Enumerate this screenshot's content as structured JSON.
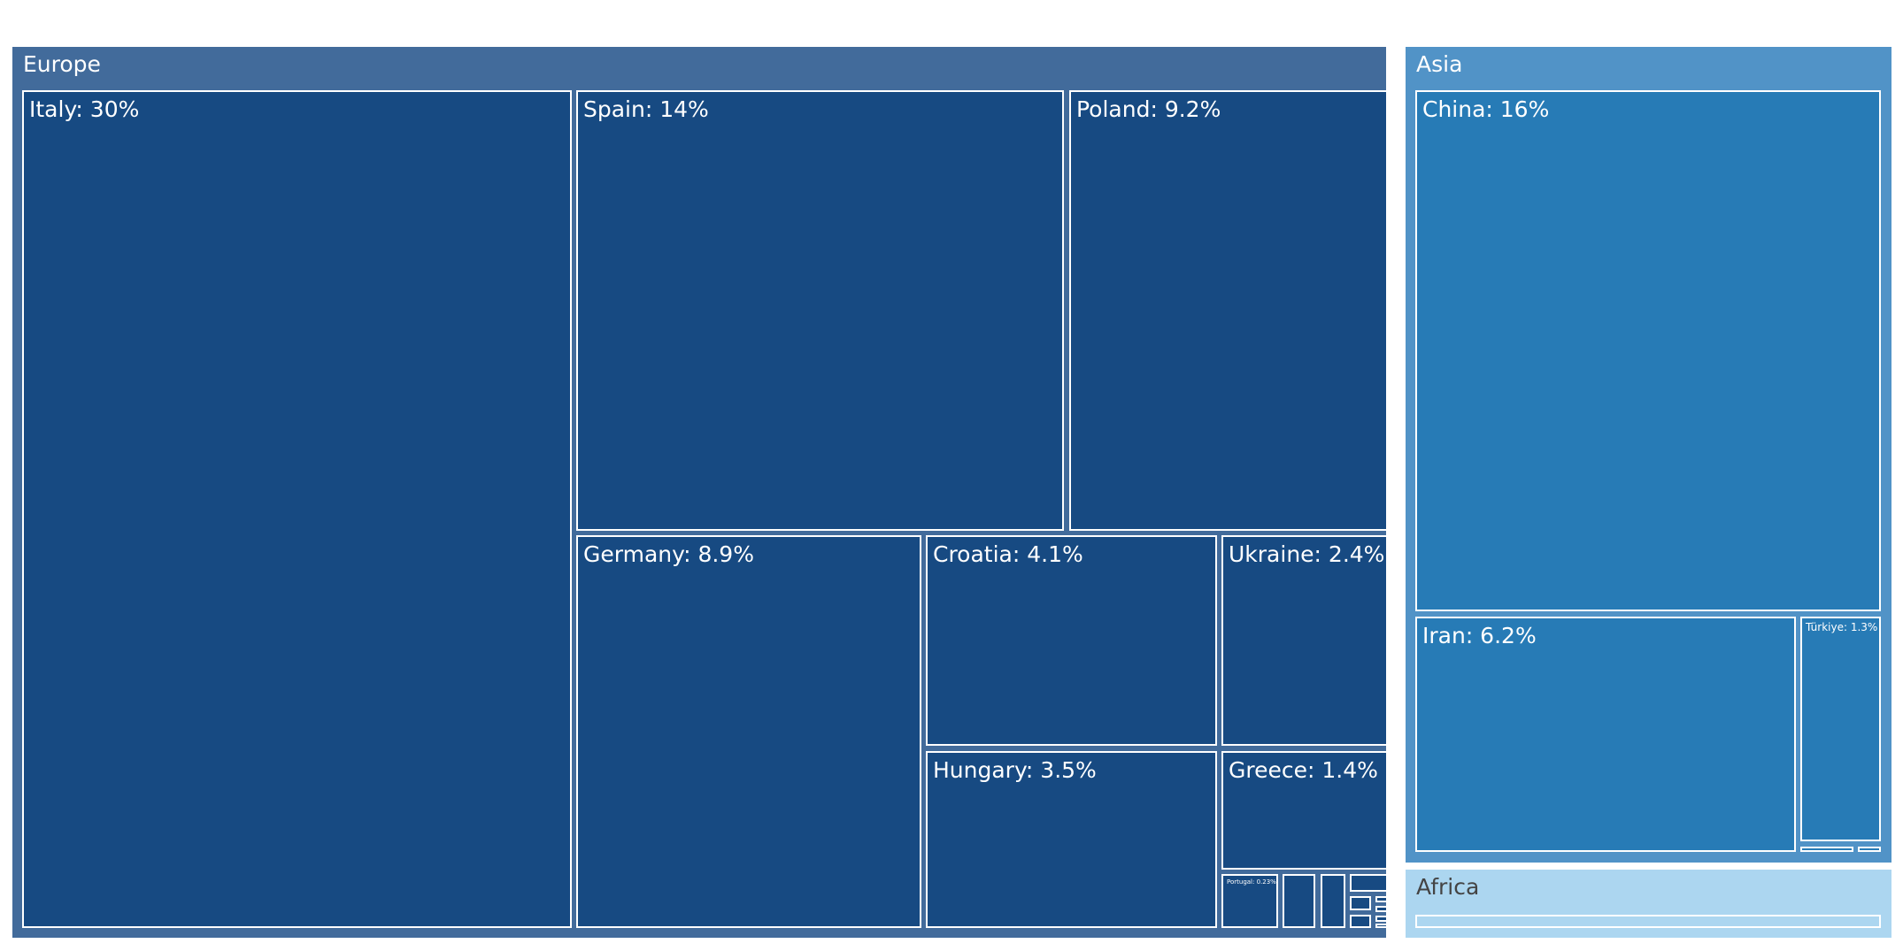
{
  "chart_data": {
    "type": "treemap",
    "title": "",
    "groups": [
      {
        "name": "Europe",
        "color": "#426b9b",
        "tile_color": "#174a82",
        "label_color": "#ffffff",
        "items": [
          {
            "name": "Italy",
            "label": "Italy: 30%",
            "value": 30
          },
          {
            "name": "Spain",
            "label": "Spain: 14%",
            "value": 14
          },
          {
            "name": "Poland",
            "label": "Poland: 9.2%",
            "value": 9.2
          },
          {
            "name": "Germany",
            "label": "Germany: 8.9%",
            "value": 8.9
          },
          {
            "name": "Croatia",
            "label": "Croatia: 4.1%",
            "value": 4.1
          },
          {
            "name": "Ukraine",
            "label": "Ukraine: 2.4%",
            "value": 2.4
          },
          {
            "name": "Hungary",
            "label": "Hungary: 3.5%",
            "value": 3.5
          },
          {
            "name": "Greece",
            "label": "Greece: 1.4%",
            "value": 1.4
          },
          {
            "name": "Portugal",
            "label": "Portugal: 0.23%",
            "value": 0.23
          },
          {
            "name": "small-1",
            "label": "",
            "value": 0.12
          },
          {
            "name": "small-2",
            "label": "",
            "value": 0.08
          },
          {
            "name": "small-3",
            "label": "",
            "value": 0.07
          },
          {
            "name": "small-4",
            "label": "",
            "value": 0.05
          },
          {
            "name": "small-5",
            "label": "",
            "value": 0.05
          },
          {
            "name": "small-6",
            "label": "",
            "value": 0.02
          },
          {
            "name": "small-7",
            "label": "",
            "value": 0.02
          },
          {
            "name": "small-8",
            "label": "",
            "value": 0.02
          },
          {
            "name": "small-9",
            "label": "",
            "value": 0.02
          }
        ]
      },
      {
        "name": "Asia",
        "color": "#5193c7",
        "tile_color": "#277bb6",
        "label_color": "#ffffff",
        "items": [
          {
            "name": "China",
            "label": "China: 16%",
            "value": 16
          },
          {
            "name": "Iran",
            "label": "Iran: 6.2%",
            "value": 6.2
          },
          {
            "name": "Türkiye",
            "label": "Türkiye: 1.3%",
            "value": 1.3
          },
          {
            "name": "small-a",
            "label": "",
            "value": 0.2
          },
          {
            "name": "small-b",
            "label": "",
            "value": 0.1
          }
        ]
      },
      {
        "name": "Africa",
        "color": "#acd6f0",
        "tile_color": "#acd6f0",
        "label_color": "#444444",
        "items": [
          {
            "name": "small-c",
            "label": "",
            "value": 0.1
          }
        ]
      }
    ]
  }
}
